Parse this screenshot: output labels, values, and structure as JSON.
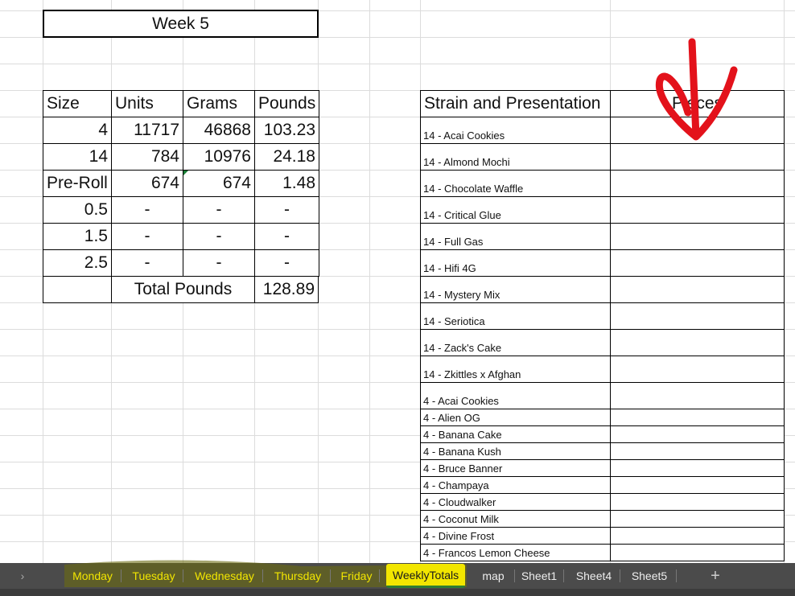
{
  "title": "Week 5",
  "summary": {
    "headers": [
      "Size",
      "Units",
      "Grams",
      "Pounds"
    ],
    "rows": [
      [
        "4",
        "11717",
        "46868",
        "103.23"
      ],
      [
        "14",
        "784",
        "10976",
        "24.18"
      ],
      [
        "Pre-Roll",
        "674",
        "674",
        "1.48"
      ],
      [
        "0.5",
        "-",
        "-",
        "-"
      ],
      [
        "1.5",
        "-",
        "-",
        "-"
      ],
      [
        "2.5",
        "-",
        "-",
        "-"
      ]
    ],
    "total_label": "Total Pounds",
    "total_value": "128.89"
  },
  "strains": {
    "headers": [
      "Strain and Presentation",
      "Pieces"
    ],
    "rows": [
      "14 - Acai Cookies",
      "14 - Almond Mochi",
      "14 - Chocolate Waffle",
      "14 - Critical Glue",
      "14 - Full Gas",
      "14 - Hifi 4G",
      "14 - Mystery Mix",
      "14 - Seriotica",
      "14 - Zack's Cake",
      "14 - Zkittles x Afghan",
      "4 - Acai Cookies",
      "4 - Alien OG",
      "4 - Banana Cake",
      "4 - Banana Kush",
      "4 - Bruce Banner",
      "4 - Champaya",
      "4 - Cloudwalker",
      "4 - Coconut Milk",
      "4 - Divine Frost",
      "4 - Francos Lemon Cheese"
    ]
  },
  "annotation_color": "#e3121b",
  "highlight_color": "#f2e600",
  "tabs": [
    {
      "label": "Monday"
    },
    {
      "label": "Tuesday"
    },
    {
      "label": "Wednesday"
    },
    {
      "label": "Thursday"
    },
    {
      "label": "Friday"
    },
    {
      "label": "WeeklyTotals",
      "active": true
    },
    {
      "label": "map"
    },
    {
      "label": "Sheet1"
    },
    {
      "label": "Sheet4"
    },
    {
      "label": "Sheet5"
    }
  ],
  "add_sheet": "+",
  "scroll_arrow": "›"
}
